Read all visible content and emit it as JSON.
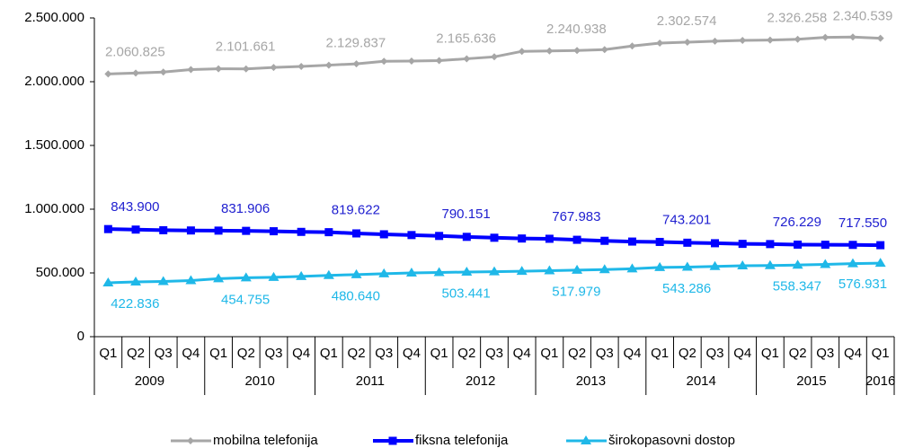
{
  "chart_data": {
    "type": "line",
    "categories": [
      "Q1",
      "Q2",
      "Q3",
      "Q4",
      "Q1",
      "Q2",
      "Q3",
      "Q4",
      "Q1",
      "Q2",
      "Q3",
      "Q4",
      "Q1",
      "Q2",
      "Q3",
      "Q4",
      "Q1",
      "Q2",
      "Q3",
      "Q4",
      "Q1",
      "Q2",
      "Q3",
      "Q4",
      "Q1",
      "Q2",
      "Q3",
      "Q4",
      "Q1"
    ],
    "years": [
      "2009",
      "2010",
      "2011",
      "2012",
      "2013",
      "2014",
      "2015",
      "2016"
    ],
    "ylim": [
      0,
      2500000
    ],
    "yticks": [
      0,
      {
        "value": 500000,
        "label": "500.000"
      },
      {
        "value": 1000000,
        "label": "1.000.000"
      },
      {
        "value": 1500000,
        "label": "1.500.000"
      },
      {
        "value": 2000000,
        "label": "2.000.000"
      },
      {
        "value": 2500000,
        "label": "2.500.000"
      }
    ],
    "legend": "bottom",
    "series": [
      {
        "name": "mobilna telefonija",
        "color": "#a6a6a6",
        "marker": "diamond",
        "values": [
          2060825,
          2068000,
          2076000,
          2095000,
          2101661,
          2100000,
          2112000,
          2120000,
          2129837,
          2140000,
          2160000,
          2162000,
          2165636,
          2180000,
          2195000,
          2238000,
          2240938,
          2245000,
          2252000,
          2280000,
          2302574,
          2310000,
          2318000,
          2324000,
          2326258,
          2333000,
          2348000,
          2350000,
          2340539
        ],
        "value_labels": [
          "2.060.825",
          null,
          null,
          null,
          "2.101.661",
          null,
          null,
          null,
          "2.129.837",
          null,
          null,
          null,
          "2.165.636",
          null,
          null,
          null,
          "2.240.938",
          null,
          null,
          null,
          "2.302.574",
          null,
          null,
          null,
          "2.326.258",
          null,
          null,
          null,
          "2.340.539"
        ]
      },
      {
        "name": "fiksna telefonija",
        "color": "#0000ff",
        "marker": "square",
        "values": [
          843900,
          840000,
          835000,
          833000,
          831906,
          830000,
          827000,
          822000,
          819622,
          810000,
          803000,
          797000,
          790151,
          783000,
          776000,
          770000,
          767983,
          760000,
          752000,
          746000,
          743201,
          737000,
          733000,
          728000,
          726229,
          722000,
          721000,
          720000,
          717550
        ],
        "value_labels": [
          "843.900",
          null,
          null,
          null,
          "831.906",
          null,
          null,
          null,
          "819.622",
          null,
          null,
          null,
          "790.151",
          null,
          null,
          null,
          "767.983",
          null,
          null,
          null,
          "743.201",
          null,
          null,
          null,
          "726.229",
          null,
          null,
          null,
          "717.550"
        ]
      },
      {
        "name": "širokopasovni dostop",
        "color": "#1fb8e8",
        "marker": "triangle",
        "values": [
          422836,
          430000,
          433000,
          440000,
          454755,
          462000,
          466000,
          473000,
          480640,
          487000,
          494000,
          500000,
          503441,
          507000,
          510000,
          513000,
          517979,
          522000,
          526000,
          533000,
          543286,
          546000,
          551000,
          556000,
          558347,
          562000,
          567000,
          573000,
          576931
        ],
        "value_labels": [
          "422.836",
          null,
          null,
          null,
          "454.755",
          null,
          null,
          null,
          "480.640",
          null,
          null,
          null,
          "503.441",
          null,
          null,
          null,
          "517.979",
          null,
          null,
          null,
          "543.286",
          null,
          null,
          null,
          "558.347",
          null,
          null,
          null,
          "576.931"
        ]
      }
    ]
  }
}
